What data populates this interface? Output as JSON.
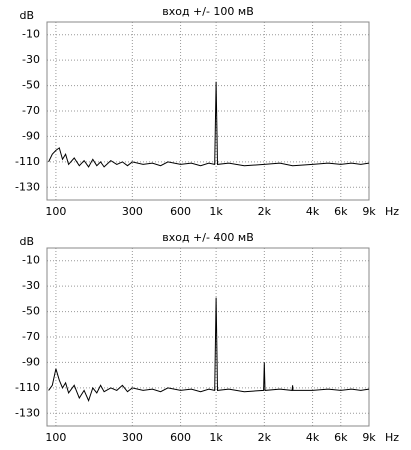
{
  "chart_data": [
    {
      "type": "line",
      "title": "вход +/- 100 мВ",
      "y_label": "dB",
      "x_label": "Hz",
      "color": "#000000",
      "grid": true,
      "log_x": true,
      "x": [
        90,
        95,
        100,
        105,
        110,
        115,
        120,
        130,
        140,
        150,
        160,
        170,
        180,
        190,
        200,
        220,
        240,
        260,
        280,
        300,
        350,
        400,
        450,
        500,
        600,
        700,
        800,
        900,
        980,
        1000,
        1020,
        1200,
        1500,
        2000,
        2500,
        3000,
        4000,
        5000,
        6000,
        7000,
        8000,
        9000
      ],
      "values": [
        -110,
        -104,
        -101,
        -99,
        -108,
        -104,
        -112,
        -107,
        -113,
        -109,
        -114,
        -108,
        -113,
        -110,
        -114,
        -109,
        -112,
        -110,
        -113,
        -110,
        -112,
        -111,
        -113,
        -110,
        -112,
        -111,
        -113,
        -111,
        -112,
        -47,
        -112,
        -111,
        -113,
        -112,
        -111,
        -113,
        -112,
        -111,
        -112,
        -111,
        -112,
        -111
      ],
      "xlim": [
        88,
        9000
      ],
      "xticks": [
        100,
        300,
        600,
        {
          "value": 1000,
          "label": "1k"
        },
        {
          "value": 2000,
          "label": "2k"
        },
        {
          "value": 4000,
          "label": "4k"
        },
        {
          "value": 6000,
          "label": "6k"
        },
        {
          "value": 9000,
          "label": "9k"
        }
      ],
      "ylim": [
        -140,
        0
      ],
      "yticks": [
        -10,
        -30,
        -50,
        -70,
        -90,
        -110,
        -130
      ]
    },
    {
      "type": "line",
      "title": "вход +/- 400 мВ",
      "y_label": "dB",
      "x_label": "Hz",
      "color": "#000000",
      "grid": true,
      "log_x": true,
      "x": [
        90,
        95,
        100,
        105,
        110,
        115,
        120,
        130,
        140,
        150,
        160,
        170,
        180,
        190,
        200,
        220,
        240,
        260,
        280,
        300,
        350,
        400,
        450,
        500,
        600,
        700,
        800,
        900,
        980,
        1000,
        1020,
        1200,
        1500,
        1980,
        2000,
        2020,
        2500,
        2980,
        3000,
        3020,
        4000,
        5000,
        6000,
        7000,
        8000,
        9000
      ],
      "values": [
        -112,
        -108,
        -95,
        -104,
        -110,
        -106,
        -114,
        -108,
        -118,
        -112,
        -120,
        -110,
        -114,
        -108,
        -113,
        -110,
        -112,
        -108,
        -113,
        -110,
        -112,
        -111,
        -113,
        -110,
        -112,
        -111,
        -113,
        -111,
        -112,
        -39,
        -112,
        -111,
        -113,
        -112,
        -90,
        -112,
        -111,
        -112,
        -108,
        -112,
        -112,
        -111,
        -112,
        -111,
        -112,
        -111
      ],
      "xlim": [
        88,
        9000
      ],
      "xticks": [
        100,
        300,
        600,
        {
          "value": 1000,
          "label": "1k"
        },
        {
          "value": 2000,
          "label": "2k"
        },
        {
          "value": 4000,
          "label": "4k"
        },
        {
          "value": 6000,
          "label": "6k"
        },
        {
          "value": 9000,
          "label": "9k"
        }
      ],
      "ylim": [
        -140,
        0
      ],
      "yticks": [
        -10,
        -30,
        -50,
        -70,
        -90,
        -110,
        -130
      ]
    }
  ]
}
